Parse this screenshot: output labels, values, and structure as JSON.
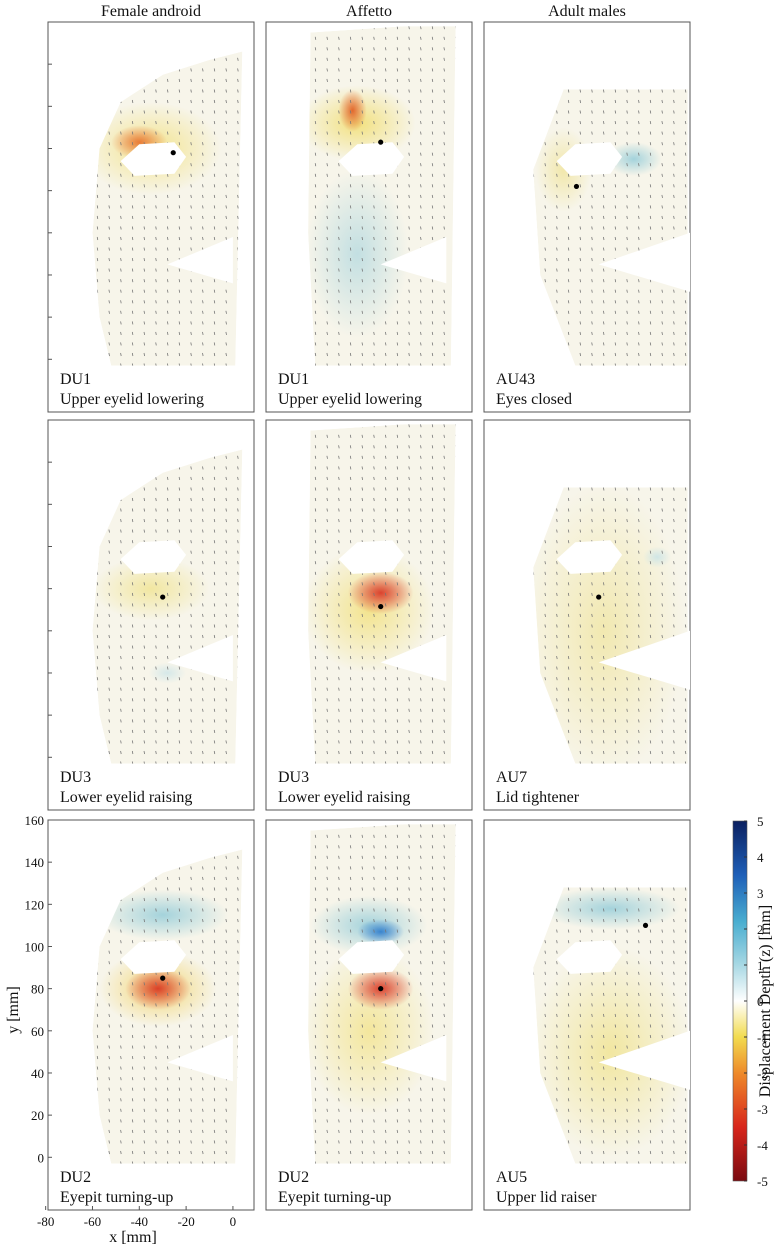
{
  "chart_data": {
    "type": "quiver",
    "columns": [
      "Female android",
      "Affetto",
      "Adult males"
    ],
    "panels": [
      {
        "code": "DU1",
        "label": "Upper eyelid lowering",
        "point": {
          "x": -25.5,
          "y": 98
        }
      },
      {
        "code": "DU1",
        "label": "Upper eyelid lowering",
        "point": {
          "x": -30,
          "y": 103
        }
      },
      {
        "code": "AU43",
        "label": "Eyes closed",
        "point": {
          "x": -39.5,
          "y": 82
        }
      },
      {
        "code": "DU3",
        "label": "Lower eyelid raising",
        "point": {
          "x": -30,
          "y": 76
        }
      },
      {
        "code": "DU3",
        "label": "Lower eyelid raising",
        "point": {
          "x": -30,
          "y": 71.5
        }
      },
      {
        "code": "AU7",
        "label": "Lid tightener",
        "point": {
          "x": -30,
          "y": 76
        }
      },
      {
        "code": "DU2",
        "label": "Eyepit turning-up",
        "point": {
          "x": -30,
          "y": 85
        }
      },
      {
        "code": "DU2",
        "label": "Eyepit turning-up",
        "point": {
          "x": -30,
          "y": 80
        }
      },
      {
        "code": "AU5",
        "label": "Upper lid raiser",
        "point": {
          "x": -10,
          "y": 110
        }
      }
    ],
    "xlabel": "x [mm]",
    "ylabel": "y [mm]",
    "xlim": [
      -79,
      9
    ],
    "ylim": [
      -25,
      160
    ],
    "xticks": [
      -80,
      -60,
      -40,
      -20,
      0
    ],
    "yticks": [
      0,
      20,
      40,
      60,
      80,
      100,
      120,
      140,
      160
    ],
    "colorbar": {
      "label": "Displacement Depth (z) [mm]",
      "lim": [
        -5,
        5
      ],
      "ticks": [
        5,
        4,
        3,
        2,
        1,
        0,
        -1,
        -2,
        -3,
        -4,
        -5
      ]
    }
  }
}
